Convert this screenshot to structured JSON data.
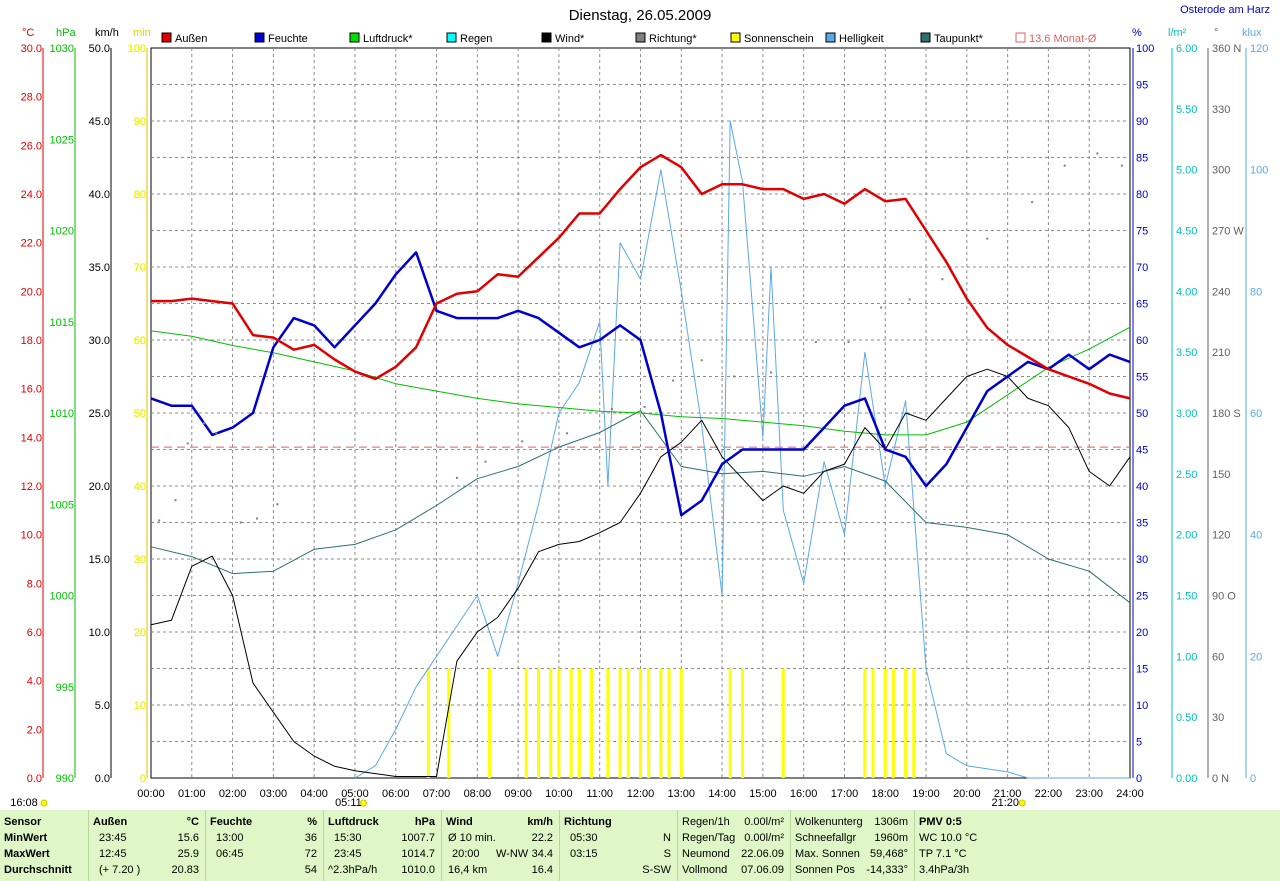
{
  "title": "Dienstag, 26.05.2009",
  "site": "Osterode am Harz",
  "colors": {
    "aussen": "#e00000",
    "feuchte": "#0000cc",
    "luftdruck": "#00c000",
    "regen": "#00e0e0",
    "wind": "#000000",
    "richtung": "#808080",
    "sonnenschein": "#ffff00",
    "helligkeit": "#5aa9e6",
    "taupunkt": "#2f6f6f",
    "monat": "#e06060",
    "grid": "#8c8c8c"
  },
  "legend": [
    {
      "label": "Außen",
      "color": "#e00000",
      "key": "aussen"
    },
    {
      "label": "Feuchte",
      "color": "#0000cc",
      "key": "feuchte"
    },
    {
      "label": "Luftdruck*",
      "color": "#00e000",
      "key": "luftdruck"
    },
    {
      "label": "Regen",
      "color": "#00ffff",
      "key": "regen"
    },
    {
      "label": "Wind*",
      "color": "#000000",
      "key": "wind"
    },
    {
      "label": "Richtung*",
      "color": "#808080",
      "key": "richtung"
    },
    {
      "label": "Sonnenschein",
      "color": "#ffff00",
      "key": "sonnenschein"
    },
    {
      "label": "Helligkeit",
      "color": "#5aa9e6",
      "key": "helligkeit"
    },
    {
      "label": "Taupunkt*",
      "color": "#2f6f6f",
      "key": "taupunkt"
    },
    {
      "label": "13.6 Monat-Ø",
      "color": "#e06060",
      "key": "monat"
    }
  ],
  "chart_data": {
    "type": "line",
    "x_ticks": [
      "00:00",
      "01:00",
      "02:00",
      "03:00",
      "04:00",
      "05:00",
      "06:00",
      "07:00",
      "08:00",
      "09:00",
      "10:00",
      "11:00",
      "12:00",
      "13:00",
      "14:00",
      "15:00",
      "16:00",
      "17:00",
      "18:00",
      "19:00",
      "20:00",
      "21:00",
      "22:00",
      "23:00",
      "24:00"
    ],
    "axes": {
      "temp": {
        "unit": "°C",
        "range": [
          0,
          30
        ],
        "ticks": [
          "30.0",
          "28.0",
          "26.0",
          "24.0",
          "22.0",
          "20.0",
          "18.0",
          "16.0",
          "14.0",
          "12.0",
          "10.0",
          "8.0",
          "6.0",
          "4.0",
          "2.0",
          "0.0"
        ]
      },
      "pressure": {
        "unit": "hPa",
        "range": [
          990,
          1030
        ],
        "ticks": [
          "1030",
          "1025",
          "1020",
          "1015",
          "1010",
          "1005",
          "1000",
          "995",
          "990"
        ]
      },
      "wind": {
        "unit": "km/h",
        "range": [
          0,
          50
        ],
        "ticks": [
          "50.0",
          "45.0",
          "40.0",
          "35.0",
          "30.0",
          "25.0",
          "20.0",
          "15.0",
          "10.0",
          "5.0",
          "0.0"
        ]
      },
      "sun": {
        "unit": "min",
        "range": [
          0,
          100
        ],
        "ticks": [
          "100",
          "90",
          "80",
          "70",
          "60",
          "50",
          "40",
          "30",
          "20",
          "10",
          "0"
        ]
      },
      "humidity": {
        "unit": "%",
        "range": [
          0,
          100
        ],
        "ticks": [
          "100",
          "95",
          "90",
          "85",
          "80",
          "75",
          "70",
          "65",
          "60",
          "55",
          "50",
          "45",
          "40",
          "35",
          "30",
          "25",
          "20",
          "15",
          "10",
          "5",
          "0"
        ]
      },
      "rain": {
        "unit": "l/m²",
        "range": [
          0,
          6
        ],
        "ticks": [
          "6.00",
          "5.50",
          "5.00",
          "4.50",
          "4.00",
          "3.50",
          "3.00",
          "2.50",
          "2.00",
          "1.50",
          "1.00",
          "0.50",
          "0.00"
        ]
      },
      "direction": {
        "unit": "°",
        "range": [
          0,
          360
        ],
        "ticks": [
          "360 N",
          "330",
          "300",
          "270 W",
          "240",
          "210",
          "180 S",
          "150",
          "120",
          "90 O",
          "60",
          "30",
          "0 N"
        ]
      },
      "light": {
        "unit": "klux",
        "range": [
          0,
          120
        ],
        "ticks": [
          "120",
          "100",
          "80",
          "60",
          "40",
          "20",
          "0"
        ]
      }
    },
    "monthly_avg_temp": 13.6,
    "sunrise": "05:11",
    "sunset": "21:20",
    "day_start_label": "16:08",
    "series": [
      {
        "name": "Außen",
        "axis": "temp",
        "x": [
          0,
          0.5,
          1,
          1.5,
          2,
          2.5,
          3,
          3.5,
          4,
          4.5,
          5,
          5.5,
          6,
          6.5,
          7,
          7.5,
          8,
          8.5,
          9,
          9.5,
          10,
          10.5,
          11,
          11.5,
          12,
          12.5,
          13,
          13.5,
          14,
          14.5,
          15,
          15.5,
          16,
          16.5,
          17,
          17.5,
          18,
          18.5,
          19,
          19.5,
          20,
          20.5,
          21,
          21.5,
          22,
          22.5,
          23,
          23.5,
          24
        ],
        "y": [
          19.6,
          19.6,
          19.7,
          19.6,
          19.5,
          18.2,
          18.1,
          17.6,
          17.8,
          17.2,
          16.7,
          16.4,
          16.9,
          17.7,
          19.5,
          19.9,
          20.0,
          20.7,
          20.6,
          21.4,
          22.2,
          23.2,
          23.2,
          24.2,
          25.1,
          25.6,
          25.1,
          24.0,
          24.4,
          24.4,
          24.2,
          24.2,
          23.8,
          24.0,
          23.6,
          24.2,
          23.7,
          23.8,
          22.5,
          21.2,
          19.7,
          18.5,
          17.8,
          17.3,
          16.8,
          16.5,
          16.2,
          15.8,
          15.6
        ]
      },
      {
        "name": "Feuchte",
        "axis": "humidity",
        "x": [
          0,
          0.5,
          1,
          1.5,
          2,
          2.5,
          3,
          3.5,
          4,
          4.5,
          5,
          5.5,
          6,
          6.5,
          7,
          7.5,
          8,
          8.5,
          9,
          9.5,
          10,
          10.5,
          11,
          11.5,
          12,
          12.5,
          13,
          13.5,
          14,
          14.5,
          15,
          15.5,
          16,
          16.5,
          17,
          17.5,
          18,
          18.5,
          19,
          19.5,
          20,
          20.5,
          21,
          21.5,
          22,
          22.5,
          23,
          23.5,
          24
        ],
        "y": [
          52,
          51,
          51,
          47,
          48,
          50,
          59,
          63,
          62,
          59,
          62,
          65,
          69,
          72,
          64,
          63,
          63,
          63,
          64,
          63,
          61,
          59,
          60,
          62,
          60,
          50,
          36,
          38,
          43,
          45,
          45,
          45,
          45,
          48,
          51,
          52,
          45,
          44,
          40,
          43,
          48,
          53,
          55,
          57,
          56,
          58,
          56,
          58,
          57
        ]
      },
      {
        "name": "Luftdruck",
        "axis": "pressure",
        "x": [
          0,
          1,
          2,
          3,
          4,
          5,
          6,
          7,
          8,
          9,
          10,
          11,
          12,
          13,
          14,
          15,
          16,
          17,
          18,
          19,
          20,
          21,
          22,
          23,
          24
        ],
        "y": [
          1014.5,
          1014.2,
          1013.7,
          1013.3,
          1012.8,
          1012.3,
          1011.6,
          1011.2,
          1010.8,
          1010.5,
          1010.3,
          1010.1,
          1010.0,
          1009.8,
          1009.7,
          1009.5,
          1009.3,
          1009.0,
          1008.8,
          1008.8,
          1009.5,
          1011.0,
          1012.5,
          1013.5,
          1014.7
        ]
      },
      {
        "name": "Wind",
        "axis": "wind",
        "x": [
          0,
          0.5,
          1,
          1.5,
          2,
          2.5,
          3,
          3.5,
          4,
          4.5,
          5,
          5.5,
          6,
          6.5,
          7,
          7.5,
          8,
          8.5,
          9,
          9.5,
          10,
          10.5,
          11,
          11.5,
          12,
          12.5,
          13,
          13.5,
          14,
          14.5,
          15,
          15.5,
          16,
          16.5,
          17,
          17.5,
          18,
          18.5,
          19,
          19.5,
          20,
          20.5,
          21,
          21.5,
          22,
          22.5,
          23,
          23.5,
          24
        ],
        "y": [
          10.5,
          10.8,
          14.5,
          15.2,
          12.5,
          6.5,
          4.5,
          2.5,
          1.5,
          0.8,
          0.5,
          0.3,
          0.1,
          0.1,
          0.1,
          8,
          10,
          11,
          13,
          15.5,
          16,
          16.2,
          16.8,
          17.5,
          19.5,
          22,
          23,
          24.5,
          22,
          20.5,
          19,
          20,
          19.5,
          21,
          21.5,
          24,
          22.5,
          25,
          24.5,
          26,
          27.5,
          28,
          27.5,
          26,
          25.5,
          24,
          21,
          20,
          22
        ]
      },
      {
        "name": "Helligkeit",
        "axis": "light",
        "x": [
          5,
          5.5,
          6,
          6.5,
          7,
          7.5,
          8,
          8.5,
          9,
          9.5,
          10,
          10.5,
          11,
          11.2,
          11.5,
          12,
          12.5,
          13,
          13.5,
          14,
          14.2,
          14.5,
          15,
          15.2,
          15.5,
          16,
          16.5,
          17,
          17.5,
          18,
          18.5,
          19,
          19.5,
          20,
          21,
          21.5,
          22,
          23,
          24
        ],
        "y": [
          0,
          2,
          8,
          15,
          20,
          25,
          30,
          20,
          32,
          45,
          60,
          65,
          75,
          48,
          88,
          82,
          100,
          80,
          58,
          30,
          108,
          98,
          56,
          84,
          44,
          32,
          52,
          40,
          70,
          48,
          62,
          18,
          4,
          2,
          1,
          0,
          0,
          0,
          0
        ]
      },
      {
        "name": "Taupunkt",
        "axis": "temp",
        "x": [
          0,
          1,
          2,
          3,
          4,
          5,
          6,
          7,
          8,
          9,
          10,
          11,
          12,
          13,
          14,
          15,
          16,
          17,
          18,
          19,
          20,
          21,
          22,
          23,
          24
        ],
        "y": [
          9.5,
          9.1,
          8.4,
          8.5,
          9.4,
          9.6,
          10.2,
          11.2,
          12.3,
          12.8,
          13.6,
          14.2,
          15.1,
          12.8,
          12.5,
          12.6,
          12.4,
          12.8,
          12.2,
          10.5,
          10.3,
          10.0,
          9.0,
          8.5,
          7.2
        ]
      },
      {
        "name": "Richtung",
        "axis": "direction",
        "x": [
          0.2,
          0.6,
          0.9,
          1.3,
          1.6,
          2.2,
          2.6,
          3.1,
          7.5,
          8.2,
          9.1,
          10.2,
          11.3,
          12.1,
          12.8,
          13.5,
          14.3,
          15.2,
          16.3,
          17.1,
          17.9,
          18.6,
          19.4,
          20.5,
          21.6,
          22.4,
          23.2,
          23.8
        ],
        "y": [
          127,
          137,
          165,
          175,
          170,
          126,
          128,
          135,
          148,
          156,
          166,
          170,
          182,
          183,
          196,
          206,
          198,
          200,
          215,
          215,
          232,
          236,
          246,
          266,
          284,
          302,
          308,
          302
        ]
      }
    ],
    "sun_minutes_x": [
      6.8,
      7.3,
      8.3,
      9.2,
      9.5,
      9.8,
      10.0,
      10.3,
      10.5,
      10.8,
      11.2,
      11.5,
      11.7,
      12.0,
      12.2,
      12.5,
      12.7,
      13.0,
      14.2,
      14.5,
      15.5,
      17.5,
      17.7,
      18.0,
      18.2,
      18.5,
      18.7
    ],
    "sun_minutes_y": 15
  },
  "footer": {
    "sensor": {
      "header": "Sensor",
      "rows": [
        "MinWert",
        "MaxWert",
        "Durchschnitt"
      ]
    },
    "aussen": {
      "header": "Außen",
      "unit": "°C",
      "rows": [
        [
          "23:45",
          "15.6"
        ],
        [
          "12:45",
          "25.9"
        ],
        [
          "(+ 7.20 )",
          "20.83"
        ]
      ]
    },
    "feuchte": {
      "header": "Feuchte",
      "unit": "%",
      "rows": [
        [
          "13:00",
          "36"
        ],
        [
          "06:45",
          "72"
        ],
        [
          "",
          "54"
        ]
      ]
    },
    "luftdruck": {
      "header": "Luftdruck",
      "unit": "hPa",
      "rows": [
        [
          "15:30",
          "1007.7"
        ],
        [
          "23:45",
          "1014.7"
        ],
        [
          "^2.3hPa/h",
          "1010.0"
        ]
      ]
    },
    "wind": {
      "header": "Wind",
      "unit": "km/h",
      "rows": [
        [
          "Ø 10 min.",
          "",
          "22.2"
        ],
        [
          "20:00",
          "W-NW",
          "34.4"
        ],
        [
          "16,4 km",
          "",
          "16.4"
        ]
      ]
    },
    "richtung": {
      "header": "Richtung",
      "rows": [
        [
          "05:30",
          "N"
        ],
        [
          "03:15",
          "S"
        ],
        [
          "",
          "S-SW"
        ]
      ]
    },
    "regen": {
      "rows": [
        [
          "Regen/1h",
          "0.00l/m²"
        ],
        [
          "Regen/Tag",
          "0.00l/m²"
        ],
        [
          "Neumond",
          "22.06.09"
        ],
        [
          "Vollmond",
          "07.06.09"
        ]
      ]
    },
    "wolken": {
      "rows": [
        [
          "Wolkenunterg",
          "1306m"
        ],
        [
          "Schneefallgr",
          "1960m"
        ],
        [
          "Max. Sonnen",
          "59,468°"
        ],
        [
          "Sonnen Pos",
          "-14,333°"
        ]
      ]
    },
    "pmv": {
      "rows": [
        "PMV 0:5",
        "WC 10.0 °C",
        "TP 7.1 °C",
        "3.4hPa/3h"
      ]
    }
  }
}
